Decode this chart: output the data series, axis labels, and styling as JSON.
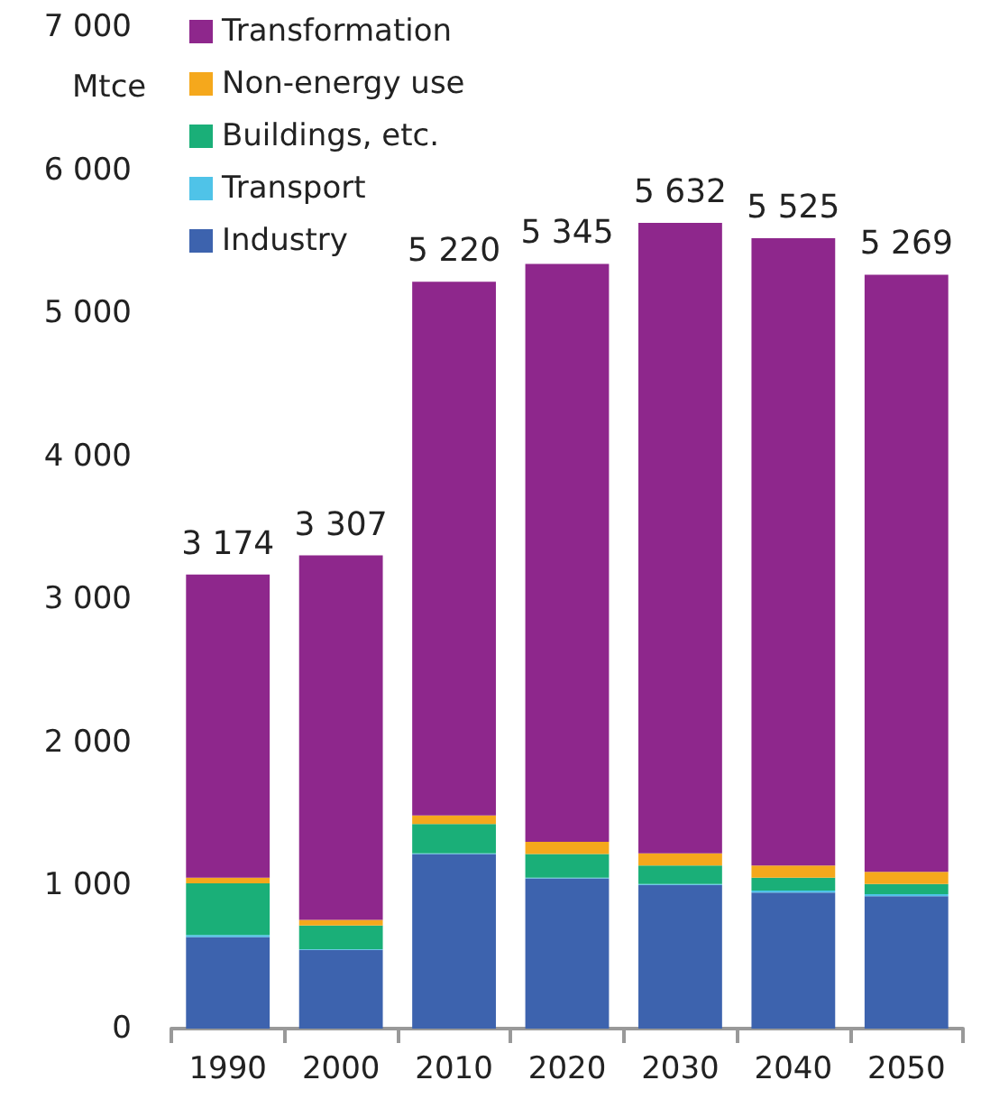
{
  "chart_data": {
    "type": "bar",
    "stacked": true,
    "ylabel": "Mtce",
    "categories": [
      "1990",
      "2000",
      "2010",
      "2020",
      "2030",
      "2040",
      "2050"
    ],
    "series": [
      {
        "name": "Industry",
        "color": "#3d63ae",
        "values": [
          640,
          550,
          1220,
          1050,
          1005,
          950,
          925
        ]
      },
      {
        "name": "Transport",
        "color": "#4fc3e8",
        "values": [
          15,
          5,
          5,
          5,
          5,
          15,
          15
        ]
      },
      {
        "name": "Buildings, etc.",
        "color": "#1aaf78",
        "values": [
          360,
          165,
          205,
          165,
          130,
          90,
          70
        ]
      },
      {
        "name": "Non-energy use",
        "color": "#f5a81c",
        "values": [
          40,
          40,
          60,
          85,
          85,
          85,
          85
        ]
      },
      {
        "name": "Transformation",
        "color": "#8e278c",
        "values": [
          2119,
          2547,
          3730,
          4040,
          4407,
          4385,
          4174
        ]
      }
    ],
    "totals": [
      "3 174",
      "3 307",
      "5 220",
      "5 345",
      "5 632",
      "5 525",
      "5 269"
    ],
    "ylim": [
      0,
      7000
    ],
    "yticks": [
      {
        "value": 0,
        "label": "0"
      },
      {
        "value": 1000,
        "label": "1 000"
      },
      {
        "value": 2000,
        "label": "2 000"
      },
      {
        "value": 3000,
        "label": "3 000"
      },
      {
        "value": 4000,
        "label": "4 000"
      },
      {
        "value": 5000,
        "label": "5 000"
      },
      {
        "value": 6000,
        "label": "6 000"
      },
      {
        "value": 7000,
        "label": "7 000"
      }
    ],
    "grid": false,
    "legend": "top left"
  }
}
